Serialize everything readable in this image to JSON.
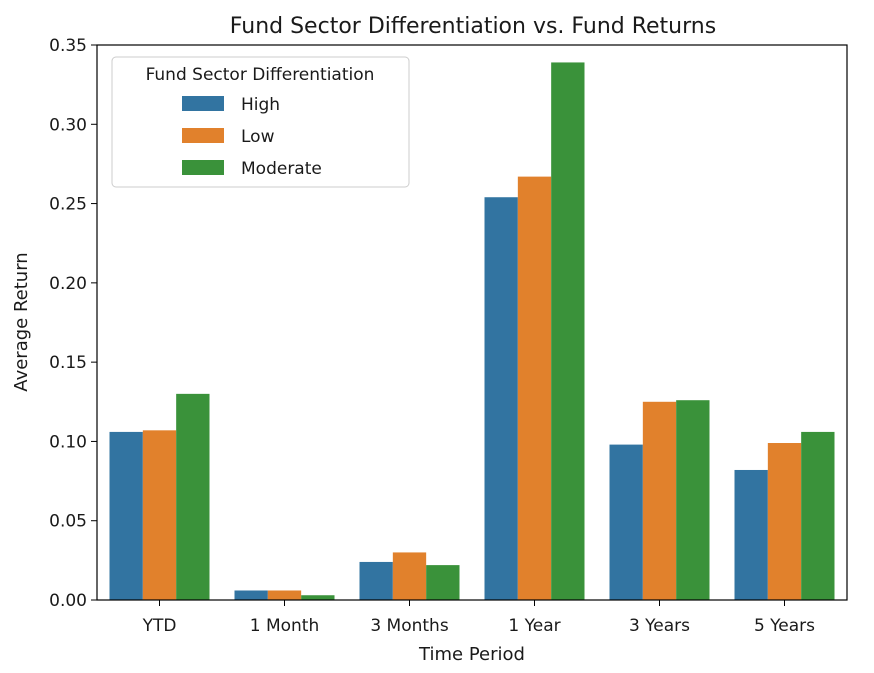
{
  "chart_data": {
    "type": "bar",
    "title": "Fund Sector Differentiation vs. Fund Returns",
    "xlabel": "Time Period",
    "ylabel": "Average Return",
    "categories": [
      "YTD",
      "1 Month",
      "3 Months",
      "1 Year",
      "3 Years",
      "5 Years"
    ],
    "ylim": [
      0,
      0.35
    ],
    "yticks": [
      "0.00",
      "0.05",
      "0.10",
      "0.15",
      "0.20",
      "0.25",
      "0.30",
      "0.35"
    ],
    "grid": false,
    "legend": {
      "title": "Fund Sector Differentiation",
      "placement": "top-left"
    },
    "series": [
      {
        "name": "High",
        "color": "#3274a1",
        "values": [
          0.106,
          0.006,
          0.024,
          0.254,
          0.098,
          0.082
        ]
      },
      {
        "name": "Low",
        "color": "#e1812c",
        "values": [
          0.107,
          0.006,
          0.03,
          0.267,
          0.125,
          0.099
        ]
      },
      {
        "name": "Moderate",
        "color": "#3a923a",
        "values": [
          0.13,
          0.003,
          0.022,
          0.339,
          0.126,
          0.106
        ]
      }
    ]
  }
}
